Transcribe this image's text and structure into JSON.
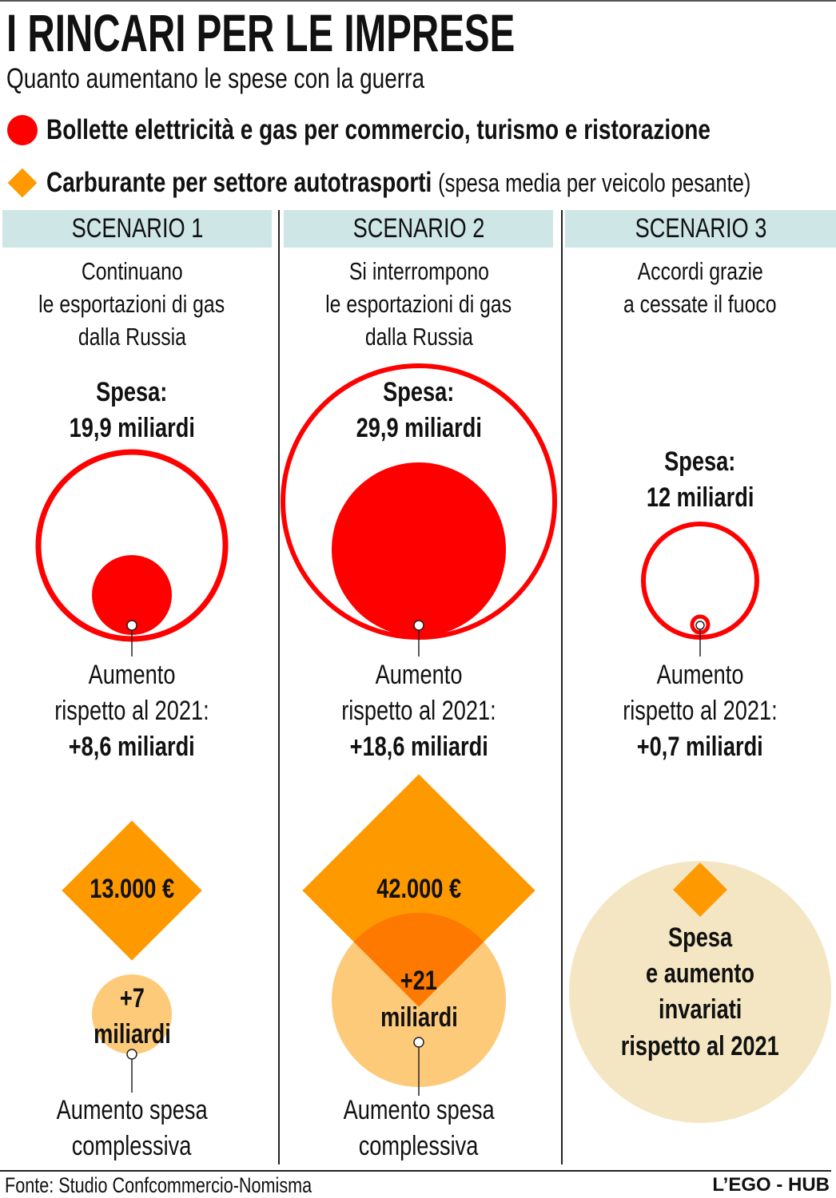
{
  "header": {
    "title": "I RINCARI PER LE IMPRESE",
    "subtitle": "Quanto aumentano le spese con la guerra"
  },
  "legend": [
    {
      "label": "Bollette elettricità e gas per commercio, turismo e ristorazione",
      "note": "",
      "color": "#ff0000",
      "shape": "circle"
    },
    {
      "label": "Carburante per settore autotrasporti",
      "note": "(spesa media per veicolo pesante)",
      "color": "#ff9900",
      "shape": "diamond"
    }
  ],
  "common": {
    "spesa_label": "Spesa:",
    "aumento_l1": "Aumento",
    "aumento_l2": "rispetto al 2021:",
    "complessiva_l1": "Aumento spesa",
    "complessiva_l2": "complessiva"
  },
  "scenarios": [
    {
      "title": "SCENARIO 1",
      "desc": [
        "Continuano",
        "le esportazioni di gas",
        "dalla Russia"
      ],
      "spesa": "19,9 miliardi",
      "aumento": "+8,6 miliardi",
      "fuel": "13.000 €",
      "fuel_increase_l1": "+7",
      "fuel_increase_l2": "miliardi"
    },
    {
      "title": "SCENARIO 2",
      "desc": [
        "Si interrompono",
        "le esportazioni di gas",
        "dalla Russia"
      ],
      "spesa": "29,9 miliardi",
      "aumento": "+18,6 miliardi",
      "fuel": "42.000 €",
      "fuel_increase_l1": "+21",
      "fuel_increase_l2": "miliardi"
    },
    {
      "title": "SCENARIO 3",
      "desc": [
        "Accordi grazie",
        "a cessate il fuoco"
      ],
      "spesa": "12 miliardi",
      "aumento": "+0,7 miliardi",
      "fuel_text": [
        "Spesa",
        "e aumento",
        "invariati",
        "rispetto al 2021"
      ]
    }
  ],
  "footer": {
    "source": "Fonte: Studio Confcommercio-Nomisma",
    "brand": "L’EGO - HUB"
  },
  "chart_data": {
    "type": "bubble",
    "title": "I RINCARI PER LE IMPRESE",
    "categories": [
      "SCENARIO 1",
      "SCENARIO 2",
      "SCENARIO 3"
    ],
    "series": [
      {
        "name": "Bollette spesa (miliardi €)",
        "values": [
          19.9,
          29.9,
          12
        ]
      },
      {
        "name": "Bollette aumento rispetto al 2021 (miliardi €)",
        "values": [
          8.6,
          18.6,
          0.7
        ]
      },
      {
        "name": "Carburante spesa media per veicolo pesante (€)",
        "values": [
          13000,
          42000,
          null
        ]
      },
      {
        "name": "Carburante aumento spesa complessiva (miliardi €)",
        "values": [
          7,
          21,
          null
        ]
      }
    ]
  }
}
